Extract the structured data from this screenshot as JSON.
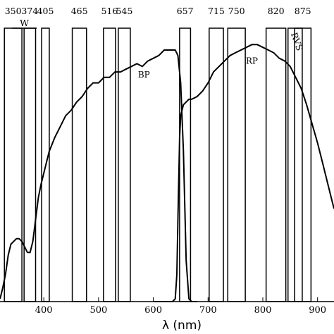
{
  "chart_data": {
    "type": "line",
    "title": "",
    "xlabel": "λ (nm)",
    "ylabel": "",
    "xlim": [
      320,
      930
    ],
    "ylim": [
      0,
      1
    ],
    "x_ticks": [
      400,
      500,
      600,
      700,
      800,
      900
    ],
    "grid": false,
    "filters": [
      {
        "label": "350",
        "left": 328,
        "right": 360
      },
      {
        "label": "374",
        "left": 364,
        "right": 385
      },
      {
        "label": "405",
        "left": 396,
        "right": 410
      },
      {
        "label": "465",
        "left": 452,
        "right": 478
      },
      {
        "label": "516",
        "left": 509,
        "right": 531
      },
      {
        "label": "545",
        "left": 536,
        "right": 558
      },
      {
        "label": "657",
        "left": 648,
        "right": 668
      },
      {
        "label": "715",
        "left": 702,
        "right": 728
      },
      {
        "label": "750",
        "left": 736,
        "right": 768
      },
      {
        "label": "820",
        "left": 806,
        "right": 842
      },
      {
        "label": "875",
        "left": 858,
        "right": 888
      }
    ],
    "filter_W": {
      "label": "W",
      "left": 342,
      "right": 387
    },
    "filter_RVS": {
      "label": "RVS",
      "left": 846,
      "right": 872
    },
    "series": [
      {
        "name": "BP",
        "x": [
          320,
          325,
          330,
          335,
          340,
          345,
          350,
          355,
          360,
          365,
          370,
          375,
          380,
          385,
          390,
          395,
          400,
          405,
          410,
          420,
          430,
          440,
          450,
          460,
          470,
          480,
          490,
          500,
          510,
          520,
          530,
          540,
          550,
          560,
          570,
          580,
          590,
          600,
          610,
          620,
          630,
          640,
          645,
          650,
          655,
          660,
          665,
          670,
          675,
          680
        ],
        "y": [
          0.01,
          0.05,
          0.1,
          0.17,
          0.21,
          0.22,
          0.23,
          0.23,
          0.22,
          0.2,
          0.18,
          0.18,
          0.22,
          0.3,
          0.38,
          0.43,
          0.47,
          0.51,
          0.55,
          0.6,
          0.64,
          0.68,
          0.7,
          0.73,
          0.75,
          0.78,
          0.8,
          0.8,
          0.82,
          0.82,
          0.84,
          0.84,
          0.85,
          0.86,
          0.87,
          0.86,
          0.88,
          0.89,
          0.9,
          0.92,
          0.92,
          0.92,
          0.9,
          0.8,
          0.55,
          0.15,
          0.01,
          0.0,
          0.0,
          0.0
        ]
      },
      {
        "name": "RP",
        "x": [
          600,
          610,
          620,
          625,
          630,
          635,
          640,
          643,
          645,
          648,
          650,
          655,
          660,
          665,
          670,
          680,
          690,
          700,
          710,
          720,
          730,
          740,
          750,
          760,
          770,
          780,
          790,
          800,
          810,
          820,
          830,
          840,
          850,
          860,
          870,
          880,
          890,
          900,
          910,
          920,
          925,
          930
        ],
        "y": [
          0.0,
          0.0,
          0.0,
          0.0,
          0.0,
          0.0,
          0.01,
          0.1,
          0.3,
          0.6,
          0.68,
          0.72,
          0.73,
          0.74,
          0.74,
          0.75,
          0.77,
          0.8,
          0.84,
          0.86,
          0.88,
          0.9,
          0.91,
          0.92,
          0.93,
          0.94,
          0.94,
          0.93,
          0.92,
          0.91,
          0.89,
          0.88,
          0.86,
          0.82,
          0.78,
          0.72,
          0.65,
          0.58,
          0.5,
          0.42,
          0.38,
          0.34
        ]
      }
    ]
  }
}
